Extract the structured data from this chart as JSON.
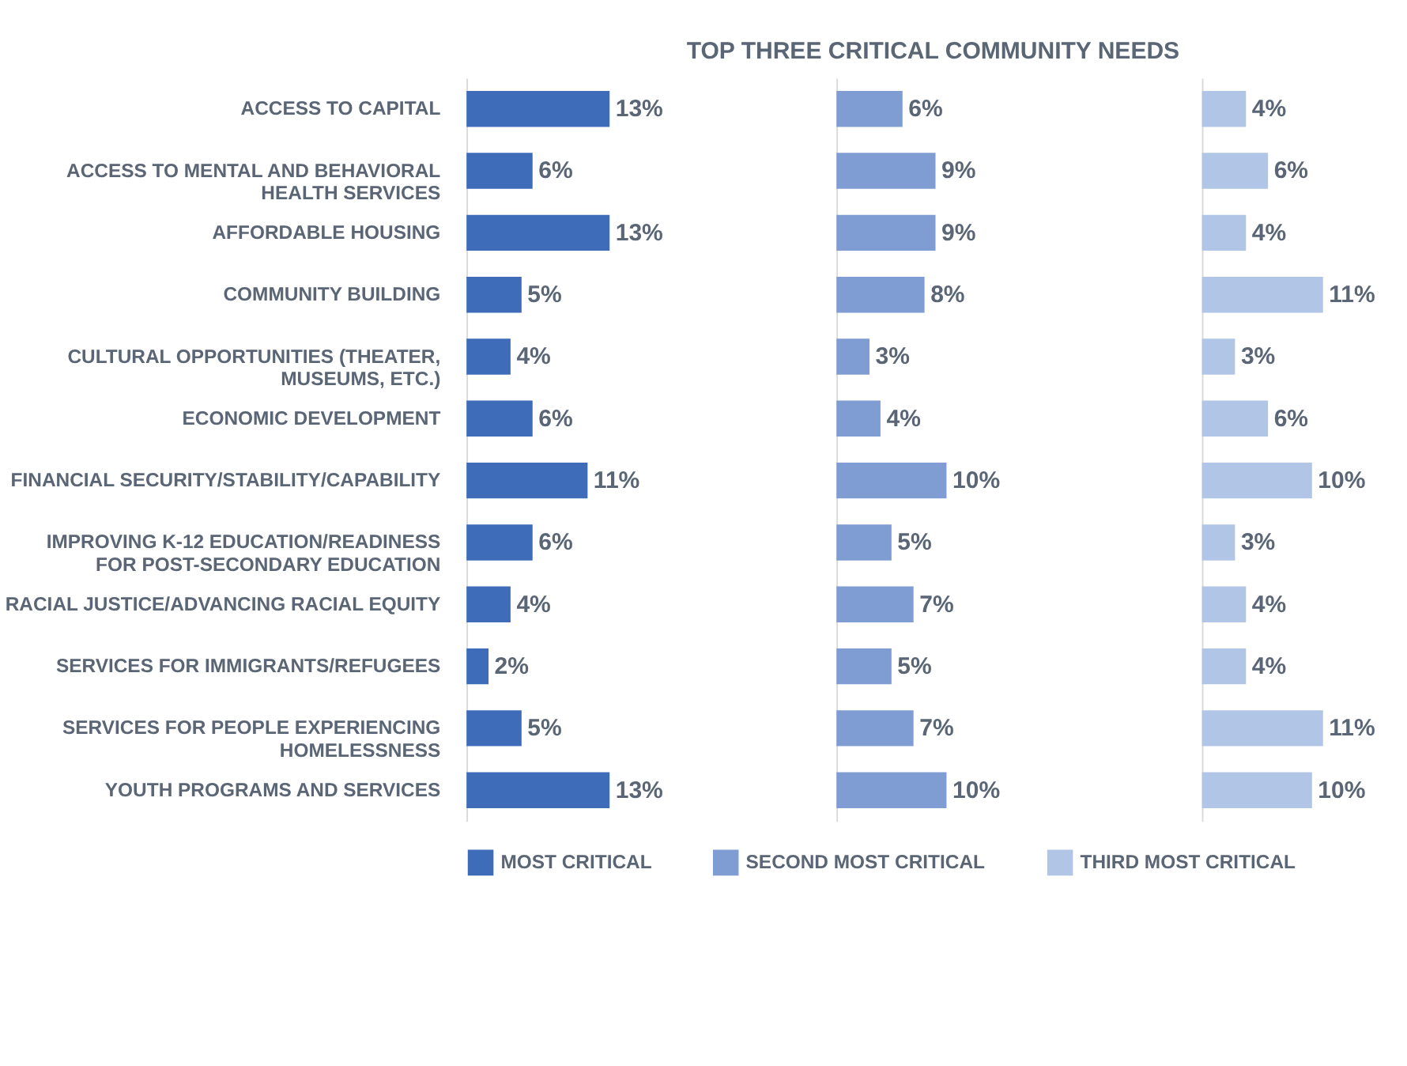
{
  "chart_data": [
    {
      "type": "bar",
      "orientation": "horizontal",
      "legend": "bottom",
      "tick_labels": "y",
      "categories": [
        "ACCESS TO CAPITAL",
        "ACCESS TO MENTAL AND BEHAVIORAL HEALTH SERVICES",
        "AFFORDABLE HOUSING",
        "COMMUNITY BUILDING",
        "CULTURAL OPPORTUNITIES (THEATER, MUSEUMS, ETC.)",
        "ECONOMIC DEVELOPMENT",
        "FINANCIAL SECURITY/STABILITY/CAPABILITY",
        "IMPROVING K-12 EDUCATION/READINESS FOR POST-SECONDARY EDUCATION",
        "RACIAL JUSTICE/ADVANCING RACIAL EQUITY",
        "SERVICES FOR IMMIGRANTS/REFUGEES",
        "SERVICES FOR PEOPLE EXPERIENCING HOMELESSNESS",
        "YOUTH PROGRAMS AND SERVICES"
      ],
      "series": [
        {
          "name": "MOST CRITICAL",
          "color": "#3f6cb9",
          "values": [
            13,
            6,
            13,
            5,
            4,
            6,
            11,
            6,
            4,
            2,
            5,
            13
          ],
          "value_labels": [
            "13%",
            "6%",
            "13%",
            "5%",
            "4%",
            "6%",
            "11%",
            "6%",
            "4%",
            "2%",
            "5%",
            "13%"
          ]
        }
      ]
    },
    {
      "type": "bar",
      "orientation": "horizontal",
      "title": "TOP THREE CRITICAL COMMUNITY NEEDS",
      "legend": "bottom",
      "tick_labels": false,
      "categories": [
        "ACCESS TO CAPITAL",
        "ACCESS TO MENTAL AND BEHAVIORAL HEALTH SERVICES",
        "AFFORDABLE HOUSING",
        "COMMUNITY BUILDING",
        "CULTURAL OPPORTUNITIES (THEATER, MUSEUMS, ETC.)",
        "ECONOMIC DEVELOPMENT",
        "FINANCIAL SECURITY/STABILITY/CAPABILITY",
        "IMPROVING K-12 EDUCATION/READINESS FOR POST-SECONDARY EDUCATION",
        "RACIAL JUSTICE/ADVANCING RACIAL EQUITY",
        "SERVICES FOR IMMIGRANTS/REFUGEES",
        "SERVICES FOR PEOPLE EXPERIENCING HOMELESSNESS",
        "YOUTH PROGRAMS AND SERVICES"
      ],
      "series": [
        {
          "name": "SECOND MOST CRITICAL",
          "color": "#7f9dd3",
          "values": [
            6,
            9,
            9,
            8,
            3,
            4,
            10,
            5,
            7,
            5,
            7,
            10
          ],
          "value_labels": [
            "6%",
            "9%",
            "9%",
            "8%",
            "3%",
            "4%",
            "10%",
            "5%",
            "7%",
            "5%",
            "7%",
            "10%"
          ]
        }
      ]
    },
    {
      "type": "bar",
      "orientation": "horizontal",
      "legend": "bottom",
      "tick_labels": false,
      "categories": [
        "ACCESS TO CAPITAL",
        "ACCESS TO MENTAL AND BEHAVIORAL HEALTH SERVICES",
        "AFFORDABLE HOUSING",
        "COMMUNITY BUILDING",
        "CULTURAL OPPORTUNITIES (THEATER, MUSEUMS, ETC.)",
        "ECONOMIC DEVELOPMENT",
        "FINANCIAL SECURITY/STABILITY/CAPABILITY",
        "IMPROVING K-12 EDUCATION/READINESS FOR POST-SECONDARY EDUCATION",
        "RACIAL JUSTICE/ADVANCING RACIAL EQUITY",
        "SERVICES FOR IMMIGRANTS/REFUGEES",
        "SERVICES FOR PEOPLE EXPERIENCING HOMELESSNESS",
        "YOUTH PROGRAMS AND SERVICES"
      ],
      "series": [
        {
          "name": "THIRD MOST CRITICAL",
          "color": "#b1c6e6",
          "values": [
            4,
            6,
            4,
            11,
            3,
            6,
            10,
            3,
            4,
            4,
            11,
            10
          ],
          "value_labels": [
            "4%",
            "6%",
            "4%",
            "11%",
            "3%",
            "6%",
            "10%",
            "3%",
            "4%",
            "4%",
            "11%",
            "10%"
          ]
        }
      ]
    }
  ]
}
